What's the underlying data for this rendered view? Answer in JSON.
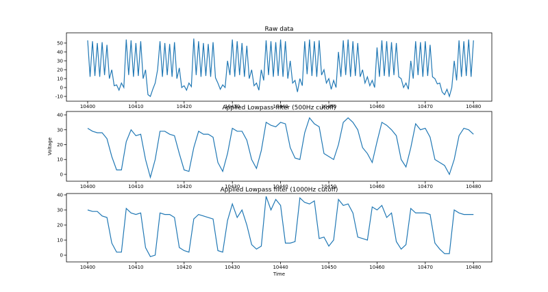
{
  "chart_data": [
    {
      "type": "line",
      "title": "Raw data",
      "color": "#1f77b4",
      "x": [
        10400,
        10400.5,
        10401,
        10401.5,
        10402,
        10402.5,
        10403,
        10403.5,
        10404,
        10404.5,
        10405,
        10405.5,
        10406,
        10406.5,
        10407,
        10407.5,
        10408,
        10408.5,
        10409,
        10409.5,
        10410,
        10410.5,
        10411,
        10411.5,
        10412,
        10412.5,
        10413,
        10413.5,
        10414,
        10414.5,
        10415,
        10415.5,
        10416,
        10416.5,
        10417,
        10417.5,
        10418,
        10418.5,
        10419,
        10419.5,
        10420,
        10420.5,
        10421,
        10421.5,
        10422,
        10422.5,
        10423,
        10423.5,
        10424,
        10424.5,
        10425,
        10425.5,
        10426,
        10426.5,
        10427,
        10427.5,
        10428,
        10428.5,
        10429,
        10429.5,
        10430,
        10430.5,
        10431,
        10431.5,
        10432,
        10432.5,
        10433,
        10433.5,
        10434,
        10434.5,
        10435,
        10435.5,
        10436,
        10436.5,
        10437,
        10437.5,
        10438,
        10438.5,
        10439,
        10439.5,
        10440,
        10440.5,
        10441,
        10441.5,
        10442,
        10442.5,
        10443,
        10443.5,
        10444,
        10444.5,
        10445,
        10445.5,
        10446,
        10446.5,
        10447,
        10447.5,
        10448,
        10448.5,
        10449,
        10449.5,
        10450,
        10450.5,
        10451,
        10451.5,
        10452,
        10452.5,
        10453,
        10453.5,
        10454,
        10454.5,
        10455,
        10455.5,
        10456,
        10456.5,
        10457,
        10457.5,
        10458,
        10458.5,
        10459,
        10459.5,
        10460,
        10460.5,
        10461,
        10461.5,
        10462,
        10462.5,
        10463,
        10463.5,
        10464,
        10464.5,
        10465,
        10465.5,
        10466,
        10466.5,
        10467,
        10467.5,
        10468,
        10468.5,
        10469,
        10469.5,
        10470,
        10470.5,
        10471,
        10471.5,
        10472,
        10472.5,
        10473,
        10473.5,
        10474,
        10474.5,
        10475,
        10475.5,
        10476,
        10476.5,
        10477,
        10477.5,
        10478,
        10478.5,
        10479,
        10479.5,
        10480
      ],
      "values": [
        53,
        12,
        52,
        13,
        50,
        12,
        51,
        14,
        48,
        10,
        20,
        2,
        3,
        -3,
        5,
        0,
        54,
        14,
        53,
        12,
        50,
        13,
        52,
        10,
        20,
        -8,
        -10,
        -2,
        5,
        20,
        52,
        12,
        50,
        14,
        49,
        12,
        51,
        10,
        22,
        0,
        2,
        -3,
        5,
        1,
        55,
        14,
        52,
        12,
        50,
        13,
        49,
        12,
        51,
        11,
        5,
        -2,
        3,
        0,
        30,
        14,
        54,
        12,
        52,
        14,
        50,
        12,
        47,
        10,
        20,
        2,
        5,
        -3,
        20,
        8,
        53,
        14,
        52,
        12,
        51,
        13,
        54,
        12,
        52,
        10,
        30,
        5,
        8,
        -5,
        10,
        2,
        52,
        15,
        54,
        13,
        52,
        12,
        53,
        14,
        20,
        5,
        10,
        -2,
        8,
        0,
        40,
        12,
        53,
        14,
        54,
        12,
        52,
        13,
        50,
        12,
        20,
        5,
        12,
        2,
        8,
        0,
        45,
        12,
        53,
        13,
        52,
        12,
        51,
        14,
        50,
        12,
        10,
        0,
        5,
        -2,
        30,
        10,
        52,
        14,
        51,
        12,
        52,
        13,
        48,
        12,
        10,
        4,
        5,
        -5,
        -8,
        -2,
        -10,
        0,
        30,
        8,
        53,
        12,
        52,
        13,
        54,
        12,
        53
      ],
      "xlim": [
        10395.6,
        10483.8
      ],
      "xticks": [
        10400,
        10410,
        10420,
        10430,
        10440,
        10450,
        10460,
        10470,
        10480
      ],
      "ylim": [
        -15.4,
        61.5
      ],
      "yticks": [
        -10,
        0,
        10,
        20,
        30,
        40,
        50
      ]
    },
    {
      "type": "line",
      "title": "Applied Lowpass filter (500Hz cutoff)",
      "y_label": "Voltage",
      "color": "#1f77b4",
      "x": [
        10400,
        10401,
        10402,
        10403,
        10404,
        10405,
        10406,
        10407,
        10408,
        10409,
        10410,
        10411,
        10412,
        10413,
        10414,
        10415,
        10416,
        10417,
        10418,
        10419,
        10420,
        10421,
        10422,
        10423,
        10424,
        10425,
        10426,
        10427,
        10428,
        10429,
        10430,
        10431,
        10432,
        10433,
        10434,
        10435,
        10436,
        10437,
        10438,
        10439,
        10440,
        10441,
        10442,
        10443,
        10444,
        10445,
        10446,
        10447,
        10448,
        10449,
        10450,
        10451,
        10452,
        10453,
        10454,
        10455,
        10456,
        10457,
        10458,
        10459,
        10460,
        10461,
        10462,
        10463,
        10464,
        10465,
        10466,
        10467,
        10468,
        10469,
        10470,
        10471,
        10472,
        10473,
        10474,
        10475,
        10476,
        10477,
        10478,
        10479,
        10480
      ],
      "values": [
        31,
        29,
        28,
        28,
        24,
        12,
        3,
        3,
        22,
        30,
        26,
        27,
        10,
        -2,
        10,
        29,
        29,
        27,
        26,
        14,
        3,
        2,
        18,
        29,
        27,
        27,
        25,
        8,
        2,
        14,
        31,
        29,
        29,
        23,
        10,
        4,
        16,
        35,
        33,
        32,
        35,
        34,
        18,
        11,
        10,
        28,
        38,
        34,
        32,
        14,
        12,
        10,
        20,
        35,
        38,
        35,
        30,
        18,
        14,
        8,
        22,
        35,
        33,
        30,
        26,
        10,
        5,
        18,
        34,
        30,
        31,
        25,
        10,
        8,
        6,
        0,
        10,
        26,
        31,
        30,
        27
      ],
      "xlim": [
        10395.6,
        10483.8
      ],
      "xticks": [
        10400,
        10410,
        10420,
        10430,
        10440,
        10450,
        10460,
        10470,
        10480
      ],
      "ylim": [
        -4.6,
        42.3
      ],
      "yticks": [
        0,
        10,
        20,
        30,
        40
      ]
    },
    {
      "type": "line",
      "title": "Applied Lowpass filter (1000Hz cutoff)",
      "x_label": "Time",
      "color": "#1f77b4",
      "x": [
        10400,
        10401,
        10402,
        10403,
        10404,
        10405,
        10406,
        10407,
        10408,
        10409,
        10410,
        10411,
        10412,
        10413,
        10414,
        10415,
        10416,
        10417,
        10418,
        10419,
        10420,
        10421,
        10422,
        10423,
        10424,
        10425,
        10426,
        10427,
        10428,
        10429,
        10430,
        10431,
        10432,
        10433,
        10434,
        10435,
        10436,
        10437,
        10438,
        10439,
        10440,
        10441,
        10442,
        10443,
        10444,
        10445,
        10446,
        10447,
        10448,
        10449,
        10450,
        10451,
        10452,
        10453,
        10454,
        10455,
        10456,
        10457,
        10458,
        10459,
        10460,
        10461,
        10462,
        10463,
        10464,
        10465,
        10466,
        10467,
        10468,
        10469,
        10470,
        10471,
        10472,
        10473,
        10474,
        10475,
        10476,
        10477,
        10478,
        10479,
        10480
      ],
      "values": [
        30,
        29,
        29,
        26,
        25,
        8,
        2,
        2,
        31,
        28,
        27,
        28,
        5,
        -1,
        0,
        28,
        27,
        27,
        25,
        5,
        3,
        2,
        24,
        27,
        26,
        25,
        24,
        3,
        2,
        23,
        34,
        25,
        30,
        20,
        7,
        4,
        6,
        39,
        30,
        37,
        33,
        8,
        8,
        9,
        38,
        35,
        34,
        36,
        11,
        12,
        6,
        10,
        37,
        33,
        34,
        28,
        12,
        11,
        10,
        32,
        30,
        33,
        25,
        28,
        9,
        4,
        7,
        31,
        28,
        28,
        28,
        27,
        8,
        4,
        1,
        1,
        30,
        28,
        27,
        27,
        27
      ],
      "xlim": [
        10395.6,
        10483.8
      ],
      "xticks": [
        10400,
        10410,
        10420,
        10430,
        10440,
        10450,
        10460,
        10470,
        10480
      ],
      "ylim": [
        -4.5,
        40.9
      ],
      "yticks": [
        0,
        10,
        20,
        30,
        40
      ]
    }
  ]
}
